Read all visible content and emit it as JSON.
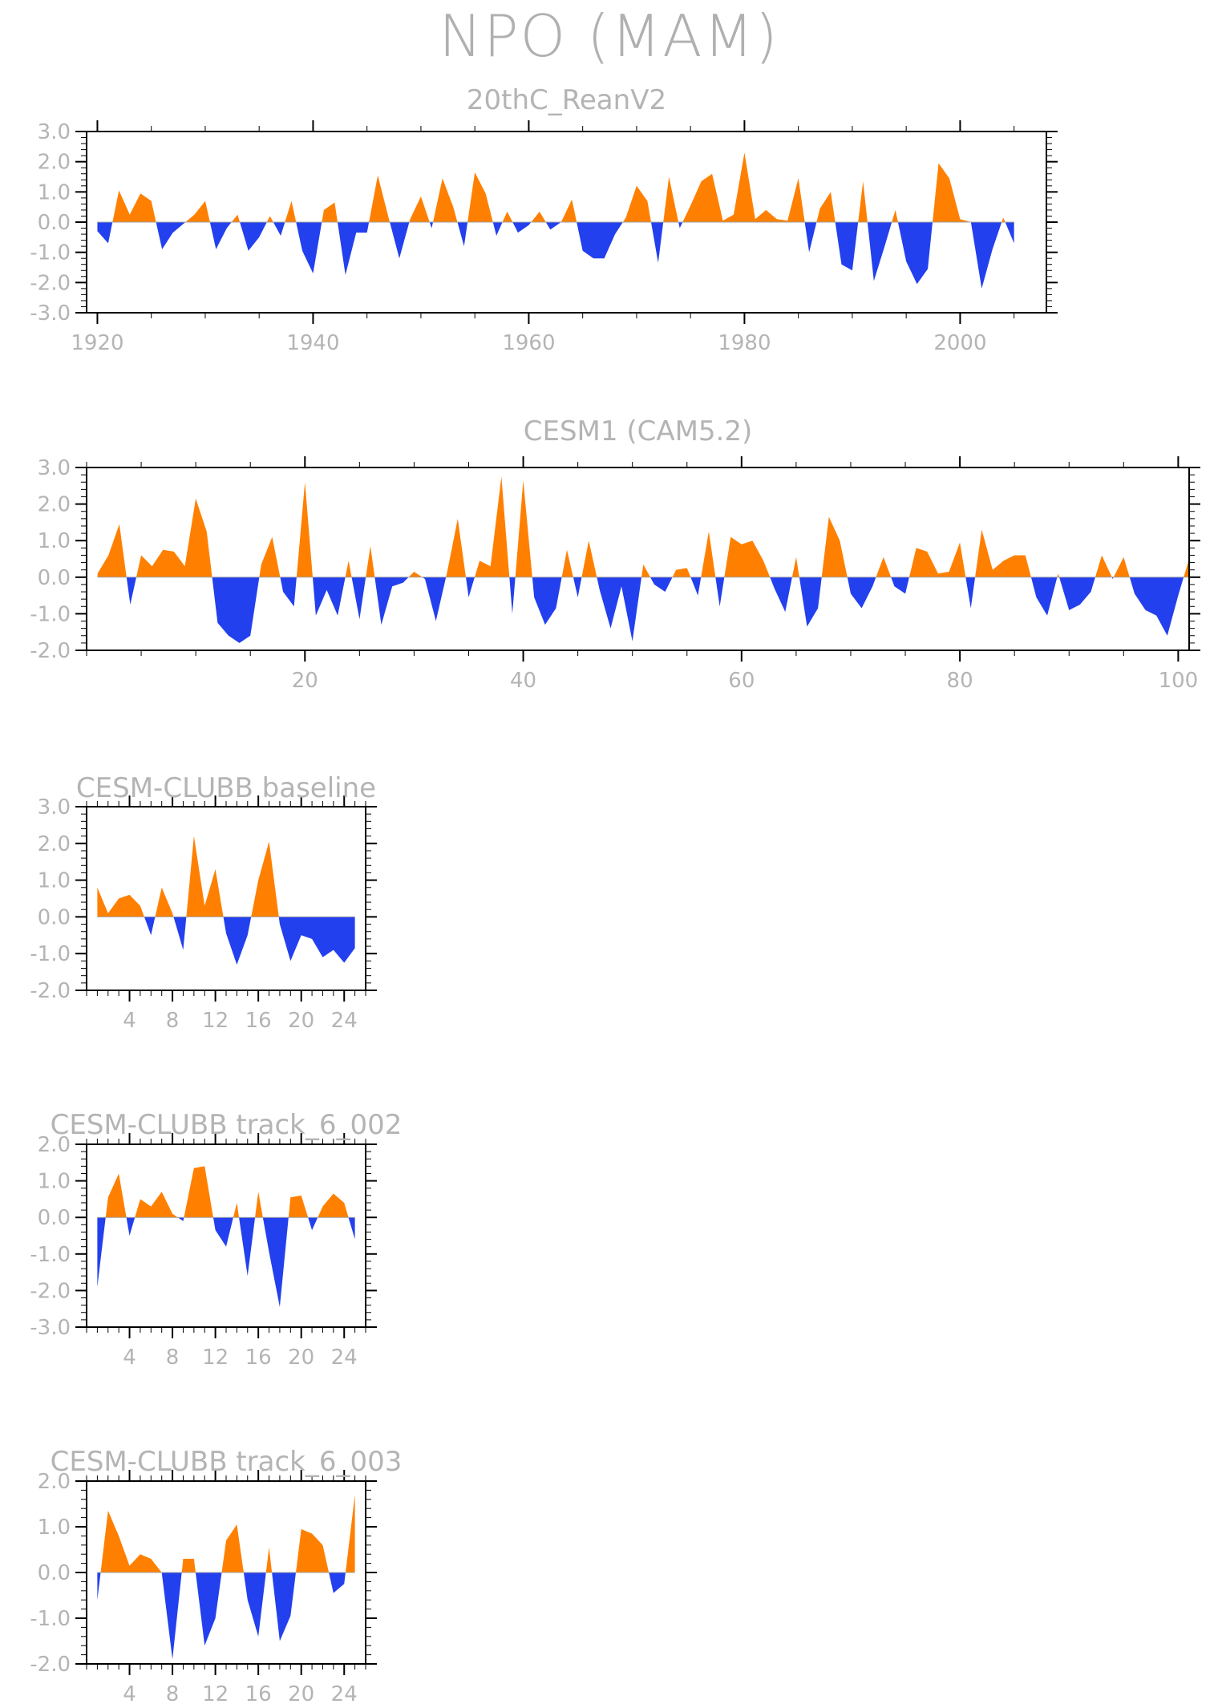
{
  "title": "NPO (MAM)",
  "colors": {
    "positive": "#ff8000",
    "negative": "#2340ee",
    "axis": "#000000",
    "text": "#b4b4b4"
  },
  "chart_data": [
    {
      "type": "area",
      "title": "20thC_ReanV2",
      "x_start": 1920,
      "xlim": [
        1919,
        2008
      ],
      "ylim": [
        -3,
        3
      ],
      "x_ticks": [
        1920,
        1940,
        1960,
        1980,
        2000
      ],
      "y_ticks": [
        "3.0",
        "2.0",
        "1.0",
        "0.0",
        "-1.0",
        "-2.0",
        "-3.0"
      ],
      "values": [
        -0.3,
        -0.7,
        1.05,
        0.25,
        0.95,
        0.7,
        -0.9,
        -0.35,
        -0.05,
        0.25,
        0.7,
        -0.9,
        -0.2,
        0.25,
        -0.95,
        -0.5,
        0.2,
        -0.45,
        0.7,
        -0.95,
        -1.7,
        0.4,
        0.65,
        -1.75,
        -0.35,
        -0.35,
        1.55,
        0.15,
        -1.2,
        0.1,
        0.85,
        -0.2,
        1.45,
        0.5,
        -0.8,
        1.65,
        0.95,
        -0.45,
        0.35,
        -0.35,
        -0.1,
        0.35,
        -0.25,
        0.0,
        0.75,
        -0.95,
        -1.2,
        -1.2,
        -0.4,
        0.15,
        1.2,
        0.7,
        -1.35,
        1.5,
        -0.2,
        0.55,
        1.35,
        1.6,
        0.05,
        0.25,
        2.3,
        0.1,
        0.4,
        0.1,
        0.05,
        1.45,
        -1.0,
        0.45,
        1.0,
        -1.4,
        -1.6,
        1.35,
        -1.95,
        -0.8,
        0.4,
        -1.3,
        -2.05,
        -1.55,
        1.95,
        1.45,
        0.1,
        0.0,
        -2.2,
        -0.9,
        0.15,
        -0.7
      ]
    },
    {
      "type": "area",
      "title": "CESM1 (CAM5.2)",
      "x_start": 1,
      "xlim": [
        0,
        101
      ],
      "ylim": [
        -2,
        3
      ],
      "x_ticks": [
        20,
        40,
        60,
        80,
        100
      ],
      "y_ticks": [
        "3.0",
        "2.0",
        "1.0",
        "0.0",
        "-1.0",
        "-2.0"
      ],
      "values": [
        0.1,
        0.6,
        1.45,
        -0.75,
        0.6,
        0.3,
        0.75,
        0.7,
        0.3,
        2.15,
        1.25,
        -1.25,
        -1.6,
        -1.8,
        -1.6,
        0.35,
        1.1,
        -0.4,
        -0.8,
        2.6,
        -1.05,
        -0.35,
        -1.05,
        0.45,
        -1.15,
        0.85,
        -1.3,
        -0.25,
        -0.15,
        0.15,
        -0.05,
        -1.2,
        0.1,
        1.6,
        -0.55,
        0.45,
        0.3,
        2.75,
        -1.0,
        2.65,
        -0.55,
        -1.3,
        -0.85,
        0.75,
        -0.55,
        1.0,
        -0.35,
        -1.4,
        -0.25,
        -1.75,
        0.35,
        -0.2,
        -0.4,
        0.2,
        0.25,
        -0.5,
        1.25,
        -0.8,
        1.1,
        0.9,
        1.0,
        0.45,
        -0.3,
        -0.95,
        0.55,
        -1.35,
        -0.85,
        1.65,
        1.0,
        -0.45,
        -0.85,
        -0.25,
        0.55,
        -0.25,
        -0.45,
        0.8,
        0.7,
        0.1,
        0.15,
        0.95,
        -0.85,
        1.3,
        0.2,
        0.45,
        0.6,
        0.6,
        -0.55,
        -1.05,
        0.1,
        -0.9,
        -0.75,
        -0.4,
        0.6,
        -0.05,
        0.55,
        -0.45,
        -0.9,
        -1.05,
        -1.6,
        -0.5,
        0.5
      ]
    },
    {
      "type": "area",
      "title": "CESM-CLUBB baseline",
      "x_start": 1,
      "xlim": [
        0,
        26
      ],
      "ylim": [
        -2,
        3
      ],
      "x_ticks": [
        4,
        8,
        12,
        16,
        20,
        24
      ],
      "y_ticks": [
        "3.0",
        "2.0",
        "1.0",
        "0.0",
        "-1.0",
        "-2.0"
      ],
      "values": [
        0.8,
        0.1,
        0.5,
        0.6,
        0.3,
        -0.5,
        0.8,
        0.1,
        -0.9,
        2.2,
        0.3,
        1.3,
        -0.45,
        -1.3,
        -0.5,
        1.0,
        2.05,
        -0.2,
        -1.2,
        -0.5,
        -0.6,
        -1.1,
        -0.9,
        -1.25,
        -0.85
      ]
    },
    {
      "type": "area",
      "title": "CESM-CLUBB track_6_002",
      "x_start": 1,
      "xlim": [
        0,
        26
      ],
      "ylim": [
        -3,
        2
      ],
      "x_ticks": [
        4,
        8,
        12,
        16,
        20,
        24
      ],
      "y_ticks": [
        "2.0",
        "1.0",
        "0.0",
        "-1.0",
        "-2.0",
        "-3.0"
      ],
      "values": [
        -1.9,
        0.55,
        1.2,
        -0.5,
        0.5,
        0.3,
        0.7,
        0.1,
        -0.1,
        1.35,
        1.4,
        -0.35,
        -0.8,
        0.4,
        -1.6,
        0.7,
        -0.95,
        -2.45,
        0.55,
        0.6,
        -0.35,
        0.3,
        0.65,
        0.4,
        -0.6
      ]
    },
    {
      "type": "area",
      "title": "CESM-CLUBB track_6_003",
      "x_start": 1,
      "xlim": [
        0,
        26
      ],
      "ylim": [
        -2,
        2
      ],
      "x_ticks": [
        4,
        8,
        12,
        16,
        20,
        24
      ],
      "y_ticks": [
        "2.0",
        "1.0",
        "0.0",
        "-1.0",
        "-2.0"
      ],
      "values": [
        -0.6,
        1.35,
        0.8,
        0.15,
        0.4,
        0.3,
        0.0,
        -1.9,
        0.3,
        0.3,
        -1.6,
        -1.0,
        0.7,
        1.05,
        -0.6,
        -1.4,
        0.55,
        -1.5,
        -0.95,
        0.95,
        0.85,
        0.6,
        -0.45,
        -0.25,
        1.7
      ]
    }
  ]
}
